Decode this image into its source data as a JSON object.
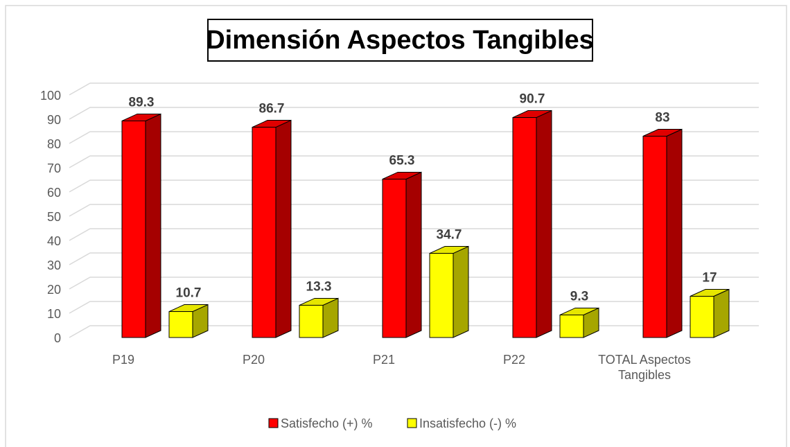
{
  "chart_data": {
    "type": "bar3d",
    "title": "Dimensión Aspectos Tangibles",
    "categories": [
      "P19",
      "P20",
      "P21",
      "P22",
      "TOTAL Aspectos Tangibles"
    ],
    "series": [
      {
        "name": "Satisfecho (+) %",
        "color": "#ff0000",
        "values": [
          89.3,
          86.7,
          65.3,
          90.7,
          83
        ]
      },
      {
        "name": "Insatisfecho (-) %",
        "color": "#ffff00",
        "values": [
          10.7,
          13.3,
          34.7,
          9.3,
          17
        ]
      }
    ],
    "ylim": [
      0,
      100
    ],
    "yticks": [
      0,
      10,
      20,
      30,
      40,
      50,
      60,
      70,
      80,
      90,
      100
    ],
    "grid": true,
    "legend": "bottom"
  }
}
